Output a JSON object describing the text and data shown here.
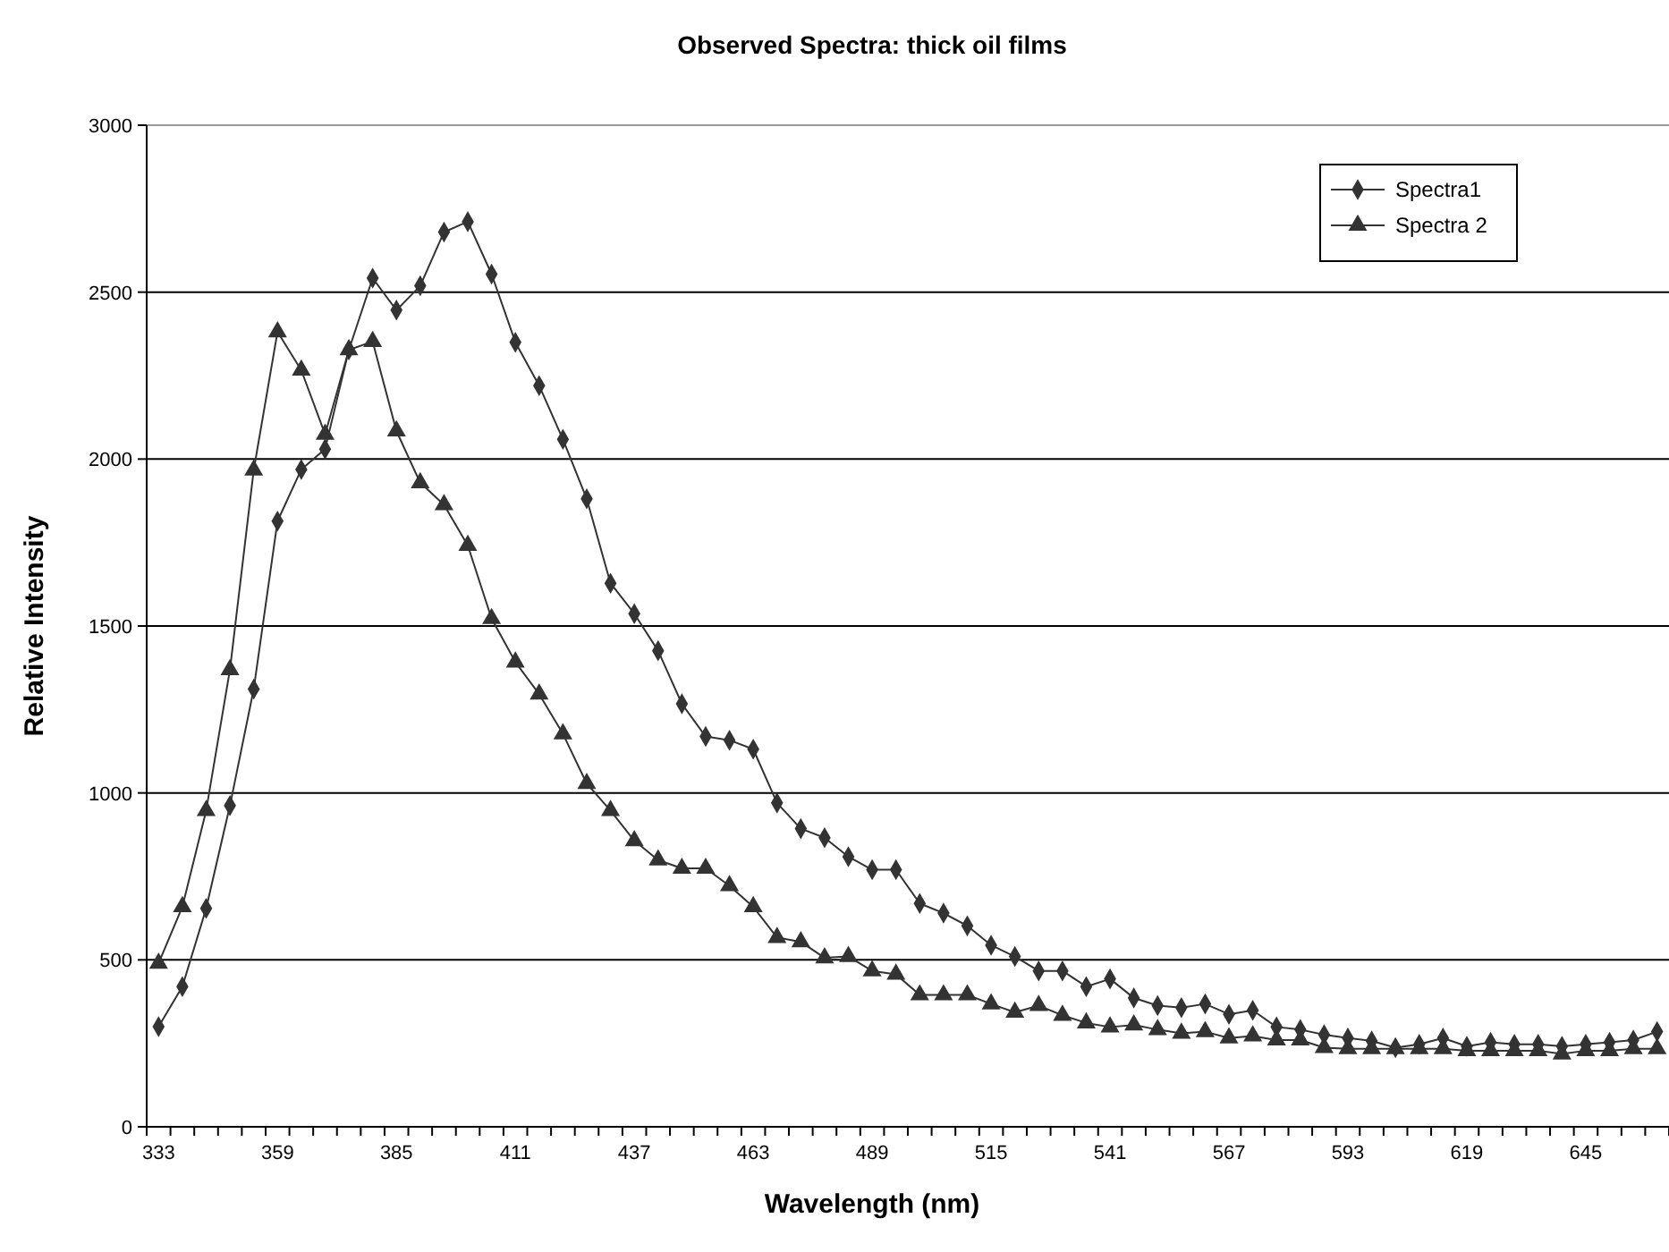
{
  "chart_data": {
    "type": "line",
    "title": "Observed Spectra: thick oil films",
    "xlabel": "Wavelength (nm)",
    "ylabel": "Relative Intensity",
    "categories": [
      "333",
      null,
      null,
      null,
      null,
      "359",
      null,
      null,
      null,
      null,
      "385",
      null,
      null,
      null,
      null,
      "411",
      null,
      null,
      null,
      null,
      "437",
      null,
      null,
      null,
      null,
      "463",
      null,
      null,
      null,
      null,
      "489",
      null,
      null,
      null,
      null,
      "515",
      null,
      null,
      null,
      null,
      "541",
      null,
      null,
      null,
      null,
      "567",
      null,
      null,
      null,
      null,
      "593",
      null,
      null,
      null,
      null,
      "619",
      null,
      null,
      null,
      null,
      "645",
      null,
      null,
      null
    ],
    "series": [
      {
        "name": "Spectra1",
        "color": "#333333",
        "marker": "diamond",
        "values": [
          300,
          420,
          654,
          962,
          1311,
          1814,
          1969,
          2030,
          2327,
          2542,
          2446,
          2519,
          2680,
          2711,
          2554,
          2350,
          2220,
          2059,
          1881,
          1628,
          1537,
          1426,
          1267,
          1169,
          1158,
          1131,
          970,
          893,
          866,
          809,
          770,
          770,
          669,
          640,
          602,
          544,
          510,
          467,
          467,
          420,
          443,
          386,
          363,
          357,
          368,
          337,
          349,
          299,
          291,
          276,
          266,
          257,
          237,
          247,
          266,
          241,
          253,
          247,
          247,
          241,
          247,
          253,
          260,
          285
        ]
      },
      {
        "name": "Spectra 2",
        "color": "#333333",
        "marker": "triangle",
        "values": [
          490,
          659,
          947,
          1369,
          1967,
          2381,
          2266,
          2074,
          2327,
          2352,
          2084,
          1929,
          1863,
          1741,
          1522,
          1392,
          1296,
          1177,
          1028,
          947,
          857,
          799,
          774,
          774,
          722,
          659,
          567,
          554,
          506,
          510,
          467,
          457,
          395,
          395,
          395,
          368,
          343,
          363,
          334,
          311,
          299,
          305,
          291,
          280,
          285,
          266,
          272,
          260,
          260,
          237,
          234,
          234,
          234,
          234,
          234,
          228,
          228,
          228,
          228,
          218,
          228,
          228,
          234,
          234
        ]
      }
    ],
    "ylim": [
      0,
      3000
    ],
    "yticks": [
      0,
      500,
      1000,
      1500,
      2000,
      2500,
      3000
    ],
    "grid": "y",
    "legend": "top right",
    "line_style": "solid"
  }
}
